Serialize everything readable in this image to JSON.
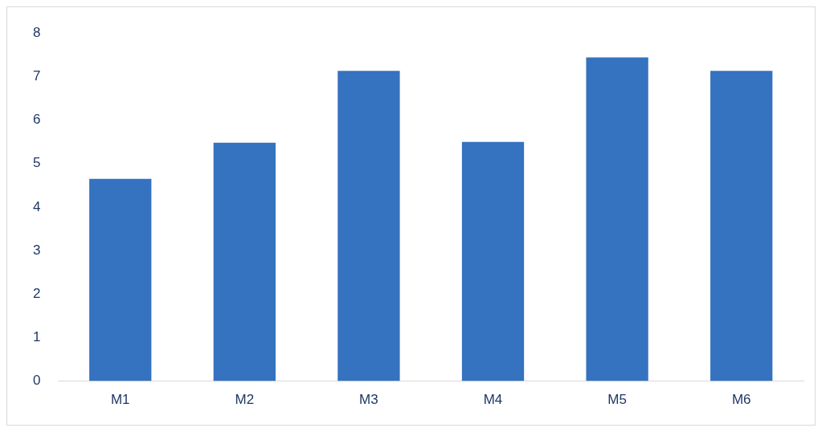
{
  "chart_data": {
    "type": "bar",
    "categories": [
      "M1",
      "M2",
      "M3",
      "M4",
      "M5",
      "M6"
    ],
    "values": [
      4.65,
      5.48,
      7.13,
      5.5,
      7.44,
      7.13
    ],
    "color": "#3572c0",
    "ylim": [
      0,
      8
    ],
    "yticks": [
      0,
      1,
      2,
      3,
      4,
      5,
      6,
      7,
      8
    ],
    "grid": false,
    "legend": false
  }
}
